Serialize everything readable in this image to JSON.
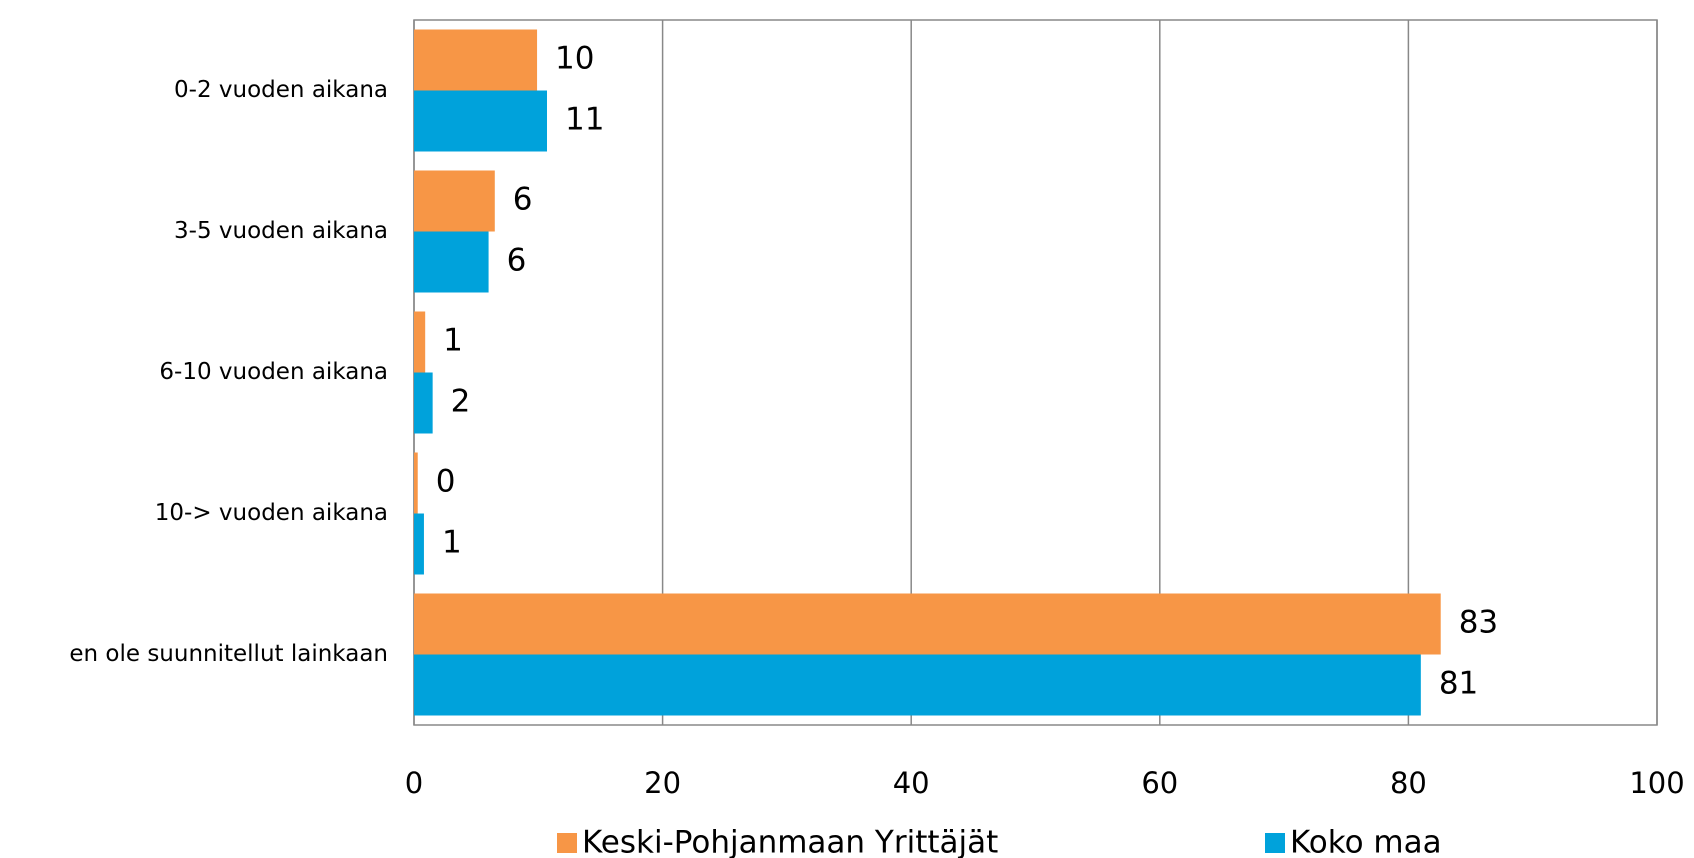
{
  "chart_data": {
    "type": "barh",
    "categories": [
      "0-2 vuoden aikana",
      "3-5 vuoden aikana",
      "6-10 vuoden aikana",
      "10-> vuoden aikana",
      "en ole suunnitellut  lainkaan"
    ],
    "series": [
      {
        "name": "Keski-Pohjanmaan Yrittäjät",
        "color": "#f79646",
        "values": [
          9.9,
          6.5,
          0.9,
          0.3,
          82.6
        ],
        "value_labels": [
          "10",
          "6",
          "1",
          "0",
          "83"
        ]
      },
      {
        "name": "Koko maa",
        "color": "#00a2db",
        "values": [
          10.7,
          6.0,
          1.5,
          0.8,
          81
        ],
        "value_labels": [
          "11",
          "6",
          "2",
          "1",
          "81"
        ]
      }
    ],
    "xlim": [
      0,
      100
    ],
    "xticks": [
      0,
      20,
      40,
      60,
      80,
      100
    ],
    "grid": true,
    "legend": "bottom"
  }
}
